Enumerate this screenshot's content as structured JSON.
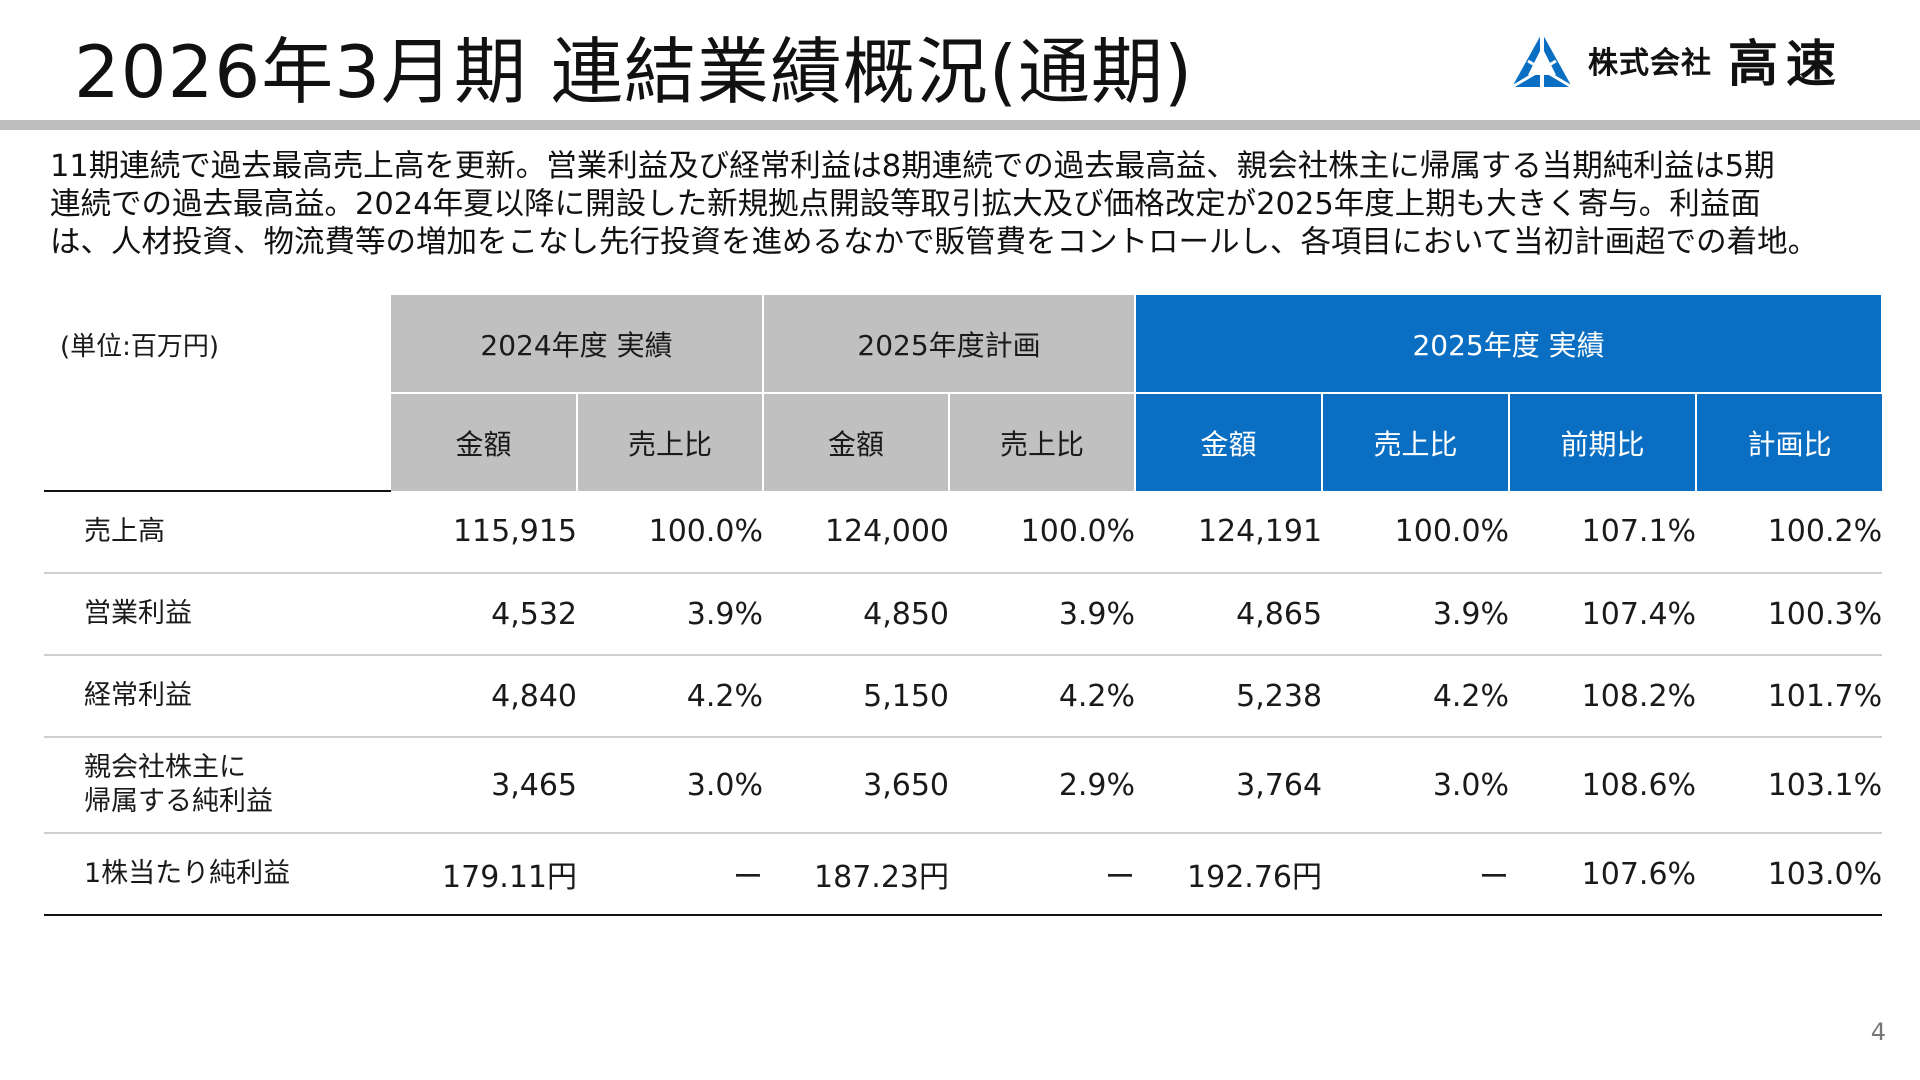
{
  "title": "2026年3月期 連結業績概況(通期)",
  "logo": {
    "prefix": "株式会社",
    "name": "高速",
    "icon": "triangle-logo-icon",
    "color": "#0a6fc2"
  },
  "summary_lines": [
    "11期連続で過去最高売上高を更新。営業利益及び経常利益は8期連続での過去最高益、親会社株主に帰属する当期純利益は5期",
    "連続での過去最高益。2024年夏以降に開設した新規拠点開設等取引拡大及び価格改定が2025年度上期も大きく寄与。利益面",
    "は、人材投資、物流費等の増加をこなし先行投資を進めるなかで販管費をコントロールし、各項目において当初計画超での着地。"
  ],
  "table": {
    "unit": "(単位:百万円)",
    "groups": [
      "2024年度 実績",
      "2025年度計画",
      "2025年度 実績"
    ],
    "subheaders": [
      "金額",
      "売上比",
      "金額",
      "売上比",
      "金額",
      "売上比",
      "前期比",
      "計画比"
    ],
    "rows": [
      {
        "label": "売上高",
        "cells": [
          "115,915",
          "100.0%",
          "124,000",
          "100.0%",
          "124,191",
          "100.0%",
          "107.1%",
          "100.2%"
        ]
      },
      {
        "label": "営業利益",
        "cells": [
          "4,532",
          "3.9%",
          "4,850",
          "3.9%",
          "4,865",
          "3.9%",
          "107.4%",
          "100.3%"
        ]
      },
      {
        "label": "経常利益",
        "cells": [
          "4,840",
          "4.2%",
          "5,150",
          "4.2%",
          "5,238",
          "4.2%",
          "108.2%",
          "101.7%"
        ]
      },
      {
        "label1": "親会社株主に",
        "label2": "帰属する純利益",
        "cells": [
          "3,465",
          "3.0%",
          "3,650",
          "2.9%",
          "3,764",
          "3.0%",
          "108.6%",
          "103.1%"
        ]
      },
      {
        "label": "1株当たり純利益",
        "cells": [
          "179.11円",
          "ー",
          "187.23円",
          "ー",
          "192.76円",
          "ー",
          "107.6%",
          "103.0%"
        ]
      }
    ]
  },
  "page_number": "4",
  "colors": {
    "accent": "#0a6fc2",
    "header_gray": "#c0c0c0",
    "rule_gray": "#bdbdbd"
  }
}
